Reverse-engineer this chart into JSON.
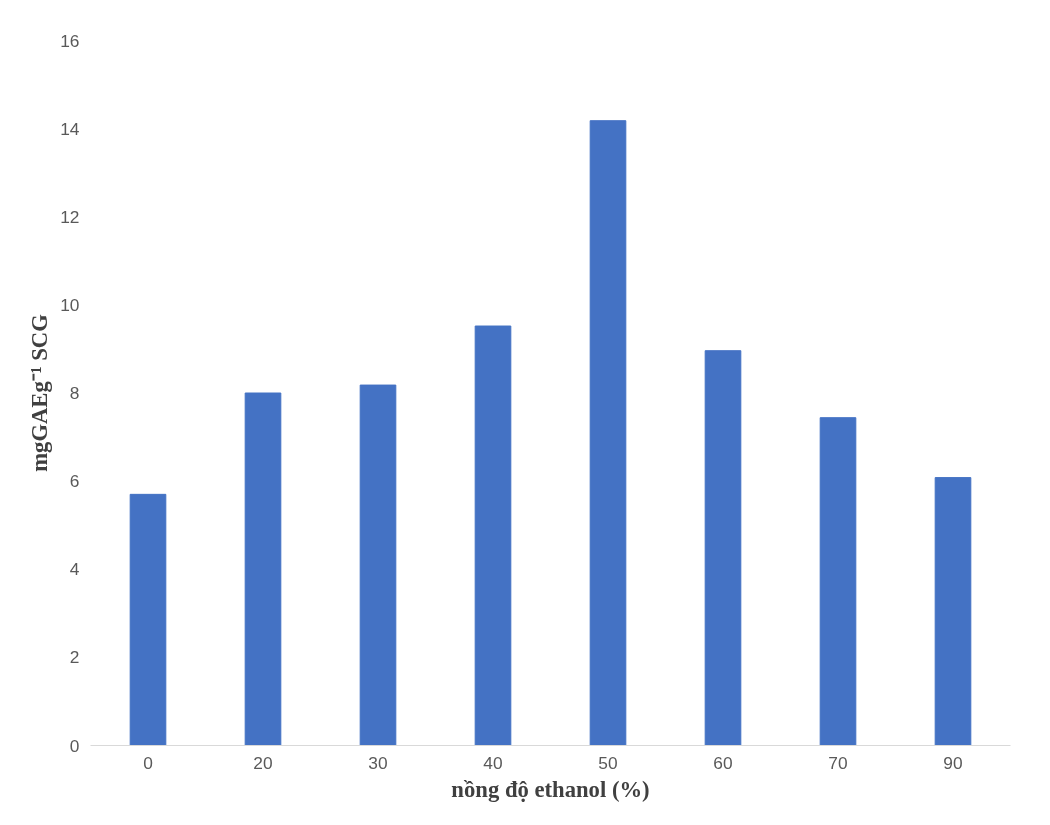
{
  "chart_data": {
    "type": "bar",
    "xlabel": "nồng độ ethanol (%)",
    "ylabel": "mgGAEg⁻¹ SCG",
    "categories": [
      "0",
      "20",
      "30",
      "40",
      "50",
      "60",
      "70",
      "90"
    ],
    "values": [
      5.7,
      8.0,
      8.18,
      9.52,
      14.18,
      8.96,
      7.44,
      6.08
    ],
    "color": "#4472c4",
    "ylim": [
      0,
      16
    ],
    "yticks": [
      0,
      2,
      4,
      6,
      8,
      10,
      12,
      14,
      16
    ],
    "grid": false
  }
}
